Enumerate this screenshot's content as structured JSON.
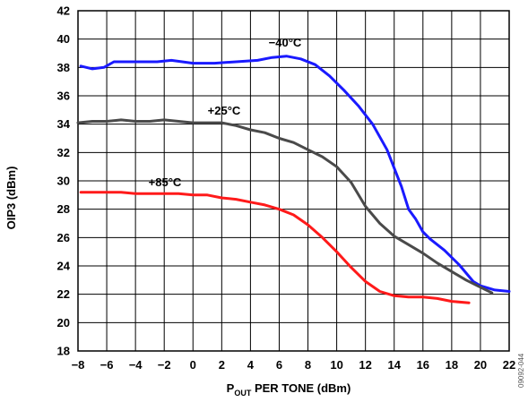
{
  "chart_data": {
    "type": "line",
    "xlabel_main": "P",
    "xlabel_sub": "OUT",
    "xlabel_rest": " PER TONE (dBm)",
    "ylabel": "OIP3 (dBm)",
    "xlim": [
      -8,
      22
    ],
    "ylim": [
      18,
      42
    ],
    "xticks": [
      "−8",
      "−6",
      "−4",
      "−2",
      "0",
      "2",
      "4",
      "6",
      "8",
      "10",
      "12",
      "14",
      "16",
      "18",
      "20",
      "22"
    ],
    "yticks": [
      "18",
      "20",
      "22",
      "24",
      "26",
      "28",
      "30",
      "32",
      "34",
      "36",
      "38",
      "40",
      "42"
    ],
    "grid": true,
    "series": [
      {
        "name": "−40°C",
        "color": "#1a1aff",
        "x": [
          -7.8,
          -7,
          -6.2,
          -5.5,
          -4.5,
          -3.5,
          -2.5,
          -1.5,
          0,
          1.5,
          3,
          4.5,
          5.5,
          6.5,
          7.5,
          8.5,
          9.5,
          10.5,
          11.5,
          12.5,
          13.5,
          14.5,
          15,
          15.5,
          16,
          16.5,
          17.5,
          18.5,
          19.5,
          20,
          21,
          22
        ],
        "y": [
          38.1,
          37.9,
          38.0,
          38.4,
          38.4,
          38.4,
          38.4,
          38.5,
          38.3,
          38.3,
          38.4,
          38.5,
          38.7,
          38.8,
          38.6,
          38.2,
          37.4,
          36.4,
          35.3,
          34.0,
          32.2,
          29.6,
          28.0,
          27.3,
          26.4,
          25.9,
          25.1,
          24.1,
          22.9,
          22.6,
          22.3,
          22.2
        ]
      },
      {
        "name": "+25°C",
        "color": "#4a4a4a",
        "x": [
          -8,
          -7,
          -6,
          -5,
          -4,
          -3,
          -2,
          -1,
          0,
          1,
          2,
          3,
          4,
          5,
          6,
          7,
          8,
          9,
          10,
          11,
          12,
          13,
          14,
          15,
          16,
          17,
          18,
          19,
          20,
          20.8
        ],
        "y": [
          34.1,
          34.2,
          34.2,
          34.3,
          34.2,
          34.2,
          34.3,
          34.2,
          34.1,
          34.1,
          34.1,
          33.9,
          33.6,
          33.4,
          33.0,
          32.7,
          32.2,
          31.7,
          31.0,
          29.9,
          28.2,
          27.0,
          26.1,
          25.5,
          24.9,
          24.2,
          23.6,
          23.0,
          22.5,
          22.1
        ]
      },
      {
        "name": "+85°C",
        "color": "#ff1a1a",
        "x": [
          -7.8,
          -7,
          -6,
          -5,
          -4,
          -3,
          -2,
          -1,
          0,
          1,
          2,
          3,
          4,
          5,
          6,
          7,
          8,
          9,
          10,
          11,
          12,
          13,
          14,
          15,
          16,
          17,
          18,
          19.2
        ],
        "y": [
          29.2,
          29.2,
          29.2,
          29.2,
          29.1,
          29.1,
          29.1,
          29.1,
          29.0,
          29.0,
          28.8,
          28.7,
          28.5,
          28.3,
          28.0,
          27.6,
          26.9,
          26.0,
          25.0,
          23.9,
          22.9,
          22.2,
          21.9,
          21.8,
          21.8,
          21.7,
          21.5,
          21.4
        ]
      }
    ],
    "series_labels": [
      "−40°C",
      "+25°C",
      "+85°C"
    ],
    "figure_id": "09092-044"
  }
}
